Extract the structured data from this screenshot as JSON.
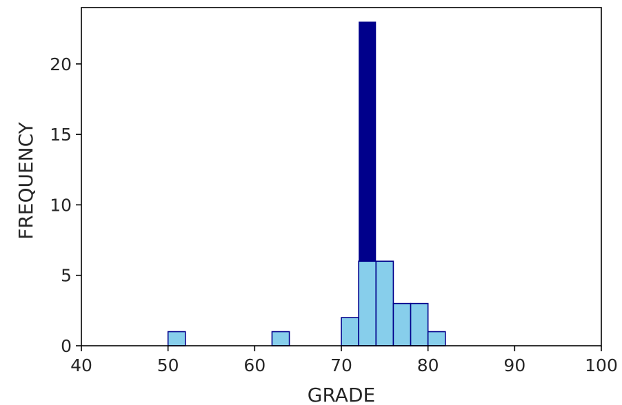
{
  "chart_data": {
    "type": "bar",
    "xlabel": "GRADE",
    "ylabel": "FREQUENCY",
    "xlim": [
      40,
      100
    ],
    "ylim": [
      0,
      24
    ],
    "xticks": [
      40,
      50,
      60,
      70,
      80,
      90,
      100
    ],
    "yticks": [
      0,
      5,
      10,
      15,
      20
    ],
    "grid": false,
    "colors": {
      "bin_fill": "#87CEEB",
      "bin_edge": "#00008B",
      "highlight": "#00008B"
    },
    "series": [
      {
        "values": [
          {
            "x0": 50,
            "x1": 52,
            "y": 1
          },
          {
            "x0": 62,
            "x1": 64,
            "y": 1
          },
          {
            "x0": 70,
            "x1": 72,
            "y": 2
          },
          {
            "x0": 72,
            "x1": 74,
            "y": 6
          },
          {
            "x0": 74,
            "x1": 76,
            "y": 6
          },
          {
            "x0": 76,
            "x1": 78,
            "y": 3
          },
          {
            "x0": 78,
            "x1": 80,
            "y": 3
          },
          {
            "x0": 80,
            "x1": 82,
            "y": 1
          }
        ]
      },
      {
        "values": [
          {
            "x0": 72,
            "x1": 74,
            "y": 23
          }
        ]
      }
    ]
  }
}
